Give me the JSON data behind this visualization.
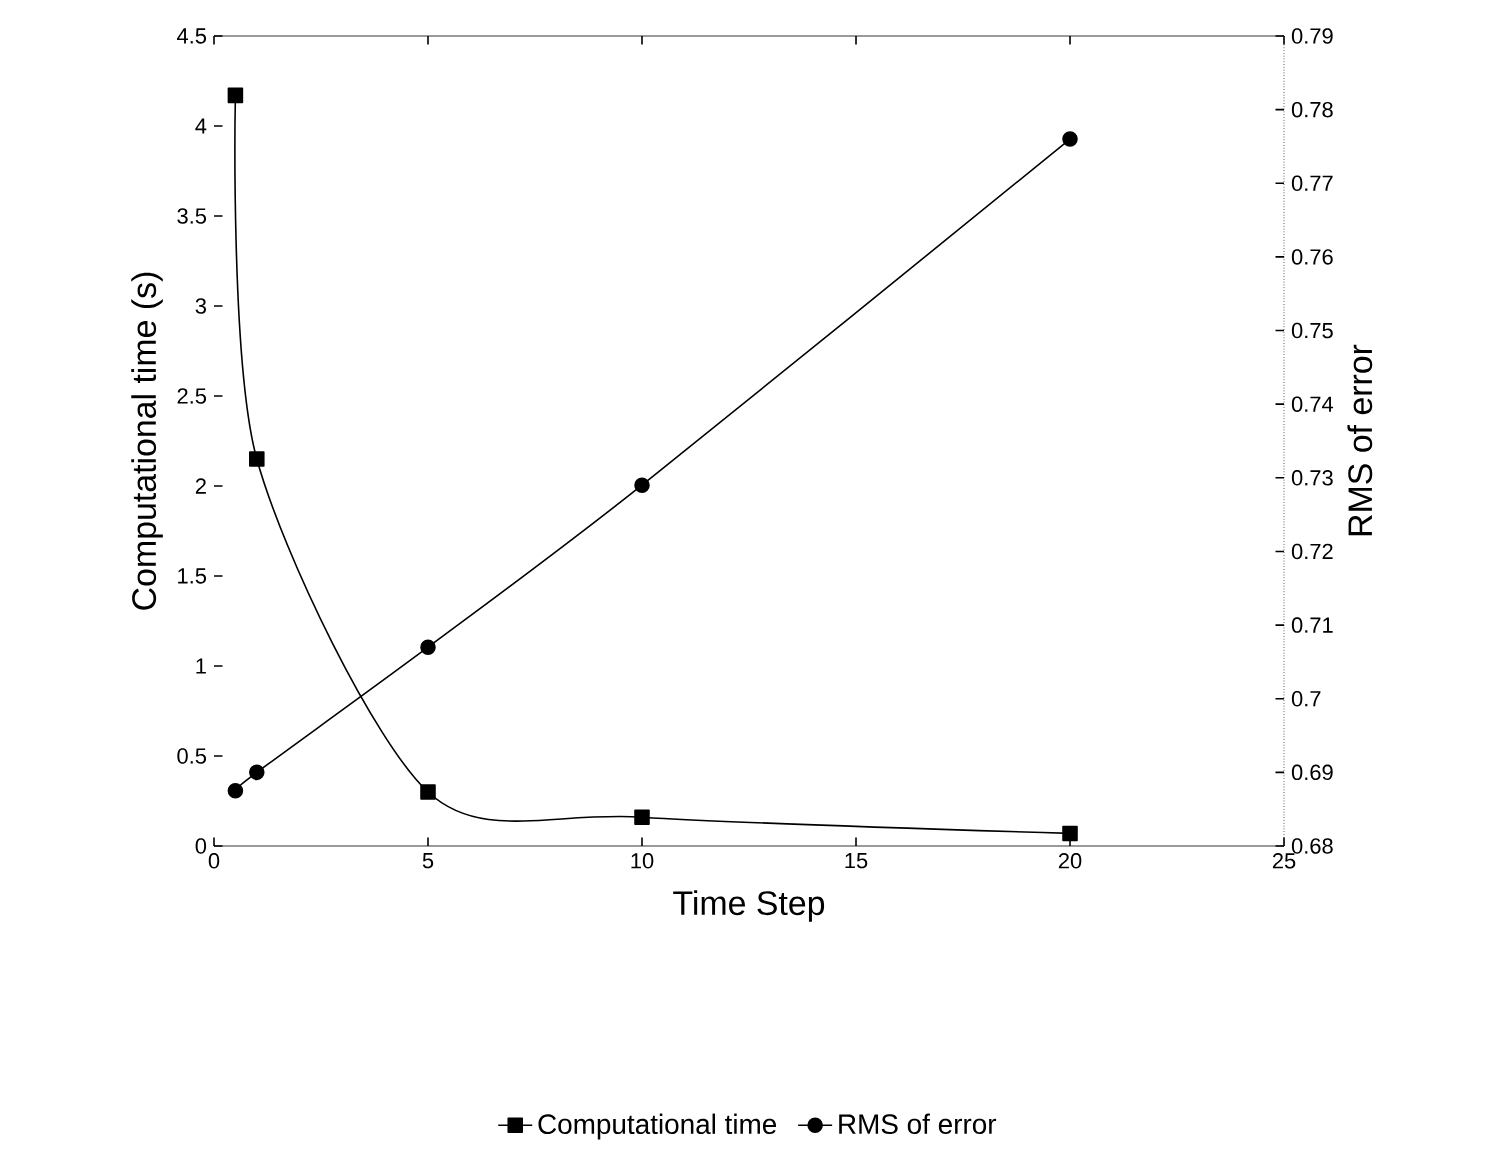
{
  "chart_data": {
    "type": "line",
    "xlabel": "Time Step",
    "ylabel": "Computational time (s)",
    "y2label": "RMS of error",
    "xlim": [
      0,
      25
    ],
    "xticks": [
      0,
      5,
      10,
      15,
      20,
      25
    ],
    "ylim": [
      0,
      4.5
    ],
    "yticks": [
      0,
      0.5,
      1,
      1.5,
      2,
      2.5,
      3,
      3.5,
      4,
      4.5
    ],
    "y2lim": [
      0.68,
      0.79
    ],
    "y2ticks": [
      0.68,
      0.69,
      0.7,
      0.71,
      0.72,
      0.73,
      0.74,
      0.75,
      0.76,
      0.77,
      0.78,
      0.79
    ],
    "grid": false,
    "legend": "bottom",
    "series": [
      {
        "name": "Computational time",
        "color": "#000000",
        "marker": "square",
        "x": [
          0.5,
          1,
          5,
          10,
          20
        ],
        "values": [
          4.17,
          2.15,
          0.3,
          0.16,
          0.07
        ]
      },
      {
        "name": "RMS of error",
        "color": "#000000",
        "marker": "circle",
        "axis": "y2",
        "x": [
          0.5,
          1,
          5,
          10,
          20
        ],
        "values": [
          0.6875,
          0.69,
          0.707,
          0.729,
          0.776
        ]
      }
    ]
  }
}
